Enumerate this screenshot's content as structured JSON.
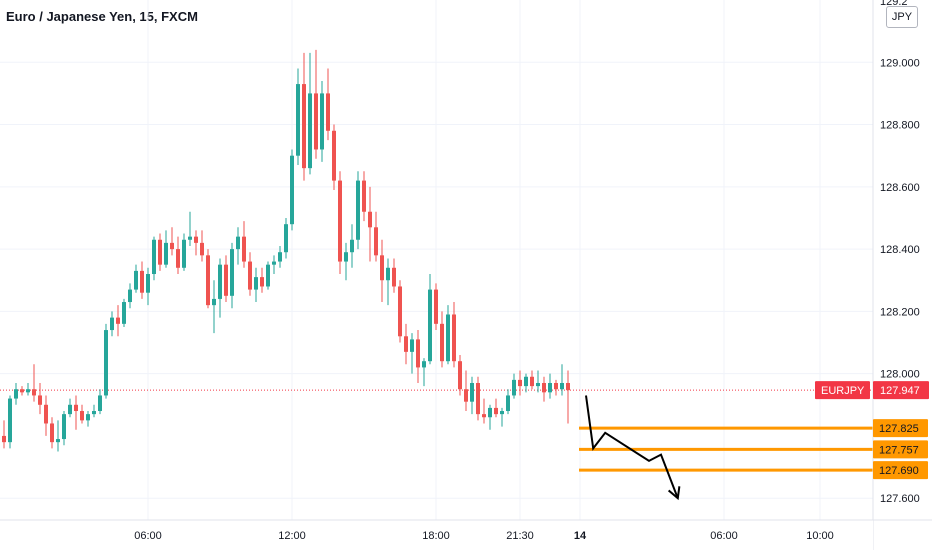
{
  "header": {
    "title": "Euro / Japanese Yen, 15, FXCM",
    "currency_button": "JPY"
  },
  "colors": {
    "up": "#26a69a",
    "down": "#ef5350",
    "level": "#ff9800",
    "marker": "#f23645",
    "arrow": "#000000"
  },
  "chart_data": {
    "type": "candlestick",
    "symbol": "EURJPY",
    "interval": "15",
    "source": "FXCM",
    "last_price": 127.947,
    "y_axis": {
      "range": [
        127.53,
        129.2
      ],
      "ticks": [
        "127.600",
        "128.000",
        "128.200",
        "128.400",
        "128.600",
        "128.800",
        "129.000"
      ],
      "top_tick_partial": "129.2"
    },
    "x_axis": {
      "ticks": [
        {
          "label": "06:00",
          "bar": 24
        },
        {
          "label": "12:00",
          "bar": 48
        },
        {
          "label": "18:00",
          "bar": 72
        },
        {
          "label": "21:30",
          "bar": 86
        },
        {
          "label": "14",
          "bar": 96,
          "bold": true
        },
        {
          "label": "06:00",
          "bar": 120
        },
        {
          "label": "10:00",
          "bar": 136
        }
      ]
    },
    "candles": [
      [
        127.8,
        127.85,
        127.76,
        127.78
      ],
      [
        127.78,
        127.93,
        127.76,
        127.92
      ],
      [
        127.92,
        127.97,
        127.9,
        127.95
      ],
      [
        127.95,
        127.96,
        127.93,
        127.94
      ],
      [
        127.94,
        127.97,
        127.93,
        127.95
      ],
      [
        127.95,
        128.03,
        127.91,
        127.93
      ],
      [
        127.93,
        127.97,
        127.87,
        127.9
      ],
      [
        127.9,
        127.93,
        127.8,
        127.84
      ],
      [
        127.84,
        127.86,
        127.76,
        127.78
      ],
      [
        127.78,
        127.85,
        127.75,
        127.79
      ],
      [
        127.79,
        127.88,
        127.77,
        127.87
      ],
      [
        127.87,
        127.92,
        127.86,
        127.9
      ],
      [
        127.9,
        127.93,
        127.82,
        127.88
      ],
      [
        127.88,
        127.9,
        127.84,
        127.85
      ],
      [
        127.85,
        127.88,
        127.83,
        127.87
      ],
      [
        127.87,
        127.9,
        127.86,
        127.88
      ],
      [
        127.88,
        127.95,
        127.87,
        127.93
      ],
      [
        127.93,
        128.16,
        127.92,
        128.14
      ],
      [
        128.14,
        128.2,
        128.12,
        128.18
      ],
      [
        128.18,
        128.22,
        128.12,
        128.16
      ],
      [
        128.16,
        128.24,
        128.15,
        128.23
      ],
      [
        128.23,
        128.29,
        128.21,
        128.27
      ],
      [
        128.27,
        128.35,
        128.26,
        128.33
      ],
      [
        128.33,
        128.36,
        128.24,
        128.26
      ],
      [
        128.26,
        128.34,
        128.22,
        128.32
      ],
      [
        128.32,
        128.44,
        128.3,
        128.43
      ],
      [
        128.43,
        128.45,
        128.33,
        128.35
      ],
      [
        128.35,
        128.46,
        128.34,
        128.42
      ],
      [
        128.42,
        128.47,
        128.38,
        128.4
      ],
      [
        128.4,
        128.44,
        128.32,
        128.34
      ],
      [
        128.34,
        128.45,
        128.33,
        128.43
      ],
      [
        128.43,
        128.52,
        128.41,
        128.44
      ],
      [
        128.44,
        128.46,
        128.38,
        128.42
      ],
      [
        128.42,
        128.46,
        128.36,
        128.38
      ],
      [
        128.38,
        128.4,
        128.21,
        128.22
      ],
      [
        128.22,
        128.3,
        128.13,
        128.24
      ],
      [
        128.24,
        128.37,
        128.18,
        128.35
      ],
      [
        128.35,
        128.38,
        128.23,
        128.25
      ],
      [
        128.25,
        128.42,
        128.21,
        128.4
      ],
      [
        128.4,
        128.47,
        128.35,
        128.44
      ],
      [
        128.44,
        128.49,
        128.34,
        128.36
      ],
      [
        128.36,
        128.39,
        128.25,
        128.27
      ],
      [
        128.27,
        128.34,
        128.23,
        128.31
      ],
      [
        128.31,
        128.34,
        128.26,
        128.28
      ],
      [
        128.28,
        128.36,
        128.27,
        128.35
      ],
      [
        128.35,
        128.38,
        128.32,
        128.36
      ],
      [
        128.36,
        128.41,
        128.34,
        128.39
      ],
      [
        128.39,
        128.5,
        128.37,
        128.48
      ],
      [
        128.48,
        128.72,
        128.46,
        128.7
      ],
      [
        128.7,
        128.98,
        128.67,
        128.93
      ],
      [
        128.93,
        129.03,
        128.62,
        128.66
      ],
      [
        128.66,
        129.03,
        128.64,
        128.9
      ],
      [
        128.9,
        129.04,
        128.69,
        128.72
      ],
      [
        128.72,
        128.94,
        128.68,
        128.9
      ],
      [
        128.9,
        128.98,
        128.75,
        128.78
      ],
      [
        128.78,
        128.8,
        128.59,
        128.62
      ],
      [
        128.62,
        128.65,
        128.32,
        128.36
      ],
      [
        128.36,
        128.42,
        128.3,
        128.39
      ],
      [
        128.39,
        128.48,
        128.34,
        128.43
      ],
      [
        128.43,
        128.65,
        128.4,
        128.62
      ],
      [
        128.62,
        128.65,
        128.49,
        128.52
      ],
      [
        128.52,
        128.6,
        128.36,
        128.47
      ],
      [
        128.47,
        128.52,
        128.36,
        128.38
      ],
      [
        128.38,
        128.43,
        128.23,
        128.3
      ],
      [
        128.3,
        128.37,
        128.22,
        128.34
      ],
      [
        128.34,
        128.37,
        128.26,
        128.28
      ],
      [
        128.28,
        128.3,
        128.1,
        128.12
      ],
      [
        128.12,
        128.16,
        128.03,
        128.07
      ],
      [
        128.07,
        128.13,
        128.0,
        128.11
      ],
      [
        128.11,
        128.14,
        127.97,
        128.02
      ],
      [
        128.02,
        128.05,
        127.96,
        128.04
      ],
      [
        128.04,
        128.32,
        128.03,
        128.27
      ],
      [
        128.27,
        128.29,
        128.14,
        128.16
      ],
      [
        128.16,
        128.2,
        128.02,
        128.04
      ],
      [
        128.04,
        128.22,
        128.03,
        128.19
      ],
      [
        128.19,
        128.23,
        128.02,
        128.04
      ],
      [
        128.04,
        128.06,
        127.93,
        127.95
      ],
      [
        127.95,
        128.01,
        127.88,
        127.91
      ],
      [
        127.91,
        127.99,
        127.87,
        127.97
      ],
      [
        127.97,
        127.99,
        127.85,
        127.87
      ],
      [
        127.87,
        127.92,
        127.84,
        127.86
      ],
      [
        127.86,
        127.9,
        127.82,
        127.89
      ],
      [
        127.89,
        127.92,
        127.86,
        127.87
      ],
      [
        127.87,
        127.89,
        127.83,
        127.88
      ],
      [
        127.88,
        127.95,
        127.87,
        127.93
      ],
      [
        127.93,
        128.0,
        127.92,
        127.98
      ],
      [
        127.98,
        128.01,
        127.93,
        127.96
      ],
      [
        127.96,
        128.0,
        127.94,
        127.99
      ],
      [
        127.99,
        128.01,
        127.95,
        127.96
      ],
      [
        127.96,
        128.01,
        127.94,
        127.97
      ],
      [
        127.97,
        127.99,
        127.91,
        127.94
      ],
      [
        127.94,
        128.0,
        127.92,
        127.97
      ],
      [
        127.97,
        127.98,
        127.93,
        127.95
      ],
      [
        127.95,
        128.03,
        127.93,
        127.97
      ],
      [
        127.97,
        128.01,
        127.84,
        127.947
      ]
    ],
    "last_price_marker": {
      "symbol_label": "EURJPY",
      "price_label": "127.947"
    },
    "horizontal_levels": [
      {
        "price": 127.825,
        "label": "127.825",
        "from_bar": 96
      },
      {
        "price": 127.757,
        "label": "127.757",
        "from_bar": 96
      },
      {
        "price": 127.69,
        "label": "127.690",
        "from_bar": 96
      }
    ],
    "projection_path": [
      {
        "bar": 97,
        "price": 127.93
      },
      {
        "bar": 98.2,
        "price": 127.76
      },
      {
        "bar": 100.2,
        "price": 127.81
      },
      {
        "bar": 107.5,
        "price": 127.72
      },
      {
        "bar": 109.5,
        "price": 127.74
      },
      {
        "bar": 112.3,
        "price": 127.6
      }
    ]
  }
}
